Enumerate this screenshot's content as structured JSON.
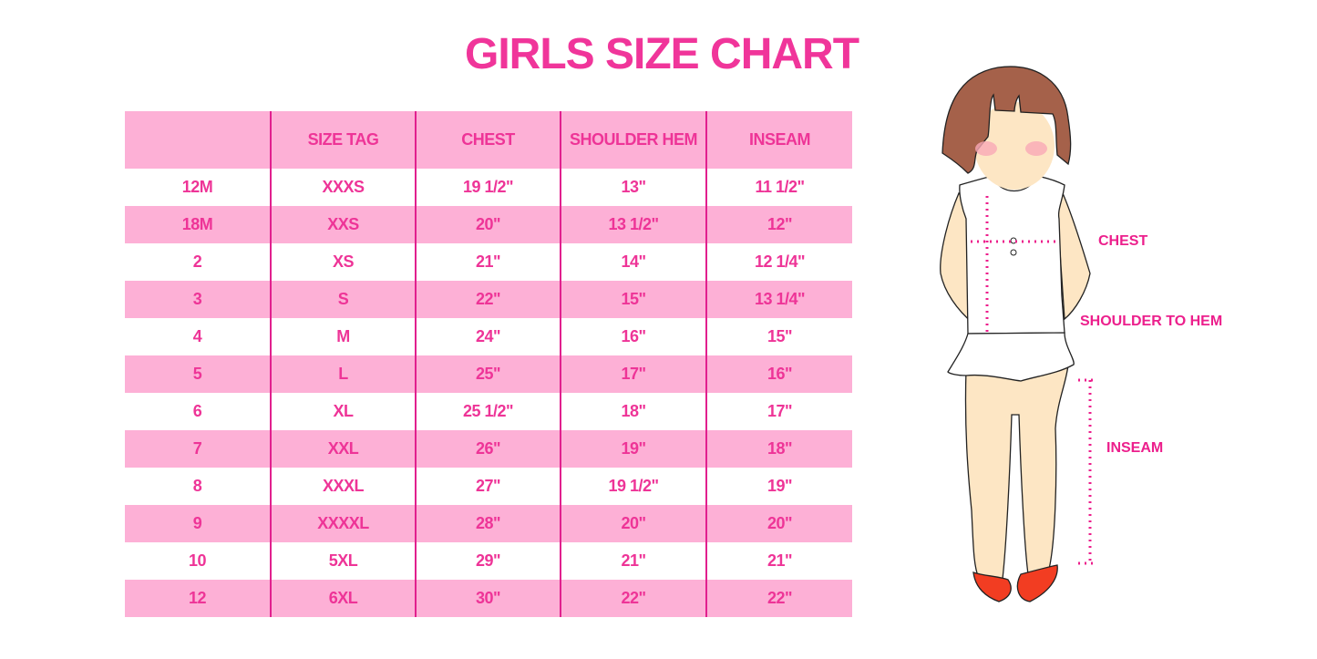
{
  "title": "GIRLS SIZE CHART",
  "table": {
    "headers": [
      "",
      "SIZE TAG",
      "CHEST",
      "SHOULDER HEM",
      "INSEAM"
    ],
    "rows": [
      [
        "12M",
        "XXXS",
        "19 1/2\"",
        "13\"",
        "11 1/2\""
      ],
      [
        "18M",
        "XXS",
        "20\"",
        "13 1/2\"",
        "12\""
      ],
      [
        "2",
        "XS",
        "21\"",
        "14\"",
        "12 1/4\""
      ],
      [
        "3",
        "S",
        "22\"",
        "15\"",
        "13 1/4\""
      ],
      [
        "4",
        "M",
        "24\"",
        "16\"",
        "15\""
      ],
      [
        "5",
        "L",
        "25\"",
        "17\"",
        "16\""
      ],
      [
        "6",
        "XL",
        "25 1/2\"",
        "18\"",
        "17\""
      ],
      [
        "7",
        "XXL",
        "26\"",
        "19\"",
        "18\""
      ],
      [
        "8",
        "XXXL",
        "27\"",
        "19 1/2\"",
        "19\""
      ],
      [
        "9",
        "XXXXL",
        "28\"",
        "20\"",
        "20\""
      ],
      [
        "10",
        "5XL",
        "29\"",
        "21\"",
        "21\""
      ],
      [
        "12",
        "6XL",
        "30\"",
        "22\"",
        "22\""
      ]
    ]
  },
  "illustration": {
    "labels": {
      "chest": "CHEST",
      "shoulder_to_hem": "SHOULDER TO HEM",
      "inseam": "INSEAM"
    }
  },
  "colors": {
    "accent": "#f0359a",
    "row_pink": "#fdb0d6",
    "divider": "#e1208e",
    "hair": "#a5614a",
    "skin": "#fde6c4",
    "shoes": "#f23d22"
  }
}
